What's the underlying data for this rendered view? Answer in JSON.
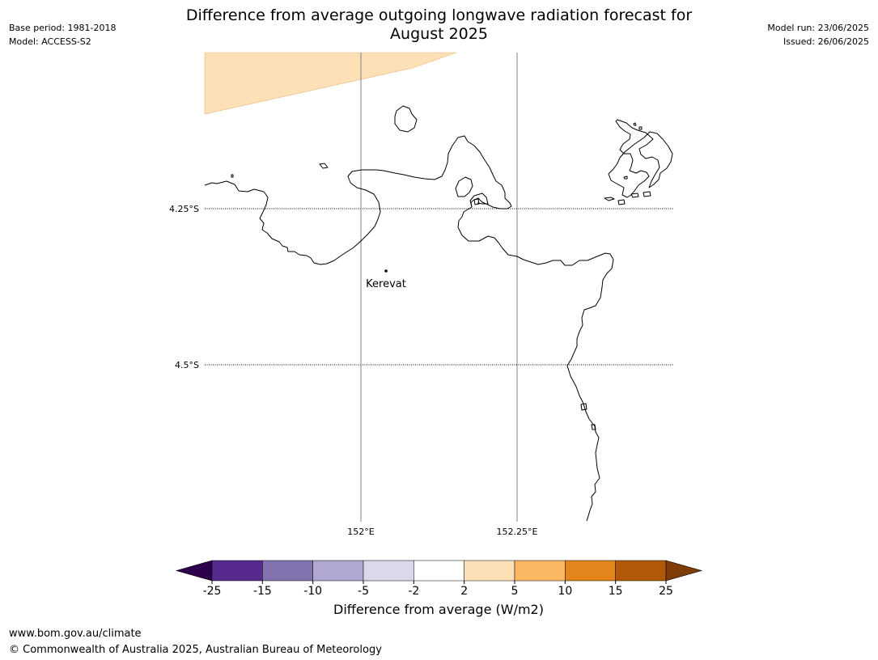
{
  "header": {
    "title_line1": "Difference from average outgoing longwave radiation forecast for",
    "title_line2": "August 2025",
    "base_period": "Base period: 1981-2018",
    "model": "Model: ACCESS-S2",
    "model_run": "Model run: 23/06/2025",
    "issued": "Issued: 26/06/2025"
  },
  "map": {
    "lat_labels": [
      "4.25°S",
      "4.5°S"
    ],
    "lon_labels": [
      "152°E",
      "152.25°E"
    ],
    "place": "Kerevat",
    "land_color": "#ffffff",
    "coast_color": "#000000",
    "shade_color": "#fde0b6"
  },
  "colorbar": {
    "label": "Difference from average (W/m2)",
    "ticks": [
      "-25",
      "-15",
      "-10",
      "-5",
      "-2",
      "2",
      "5",
      "10",
      "15",
      "25"
    ],
    "colors": [
      "#562b8d",
      "#8273b0",
      "#b0a8d1",
      "#d9d9eb",
      "#ffffff",
      "#fde0b6",
      "#fbb862",
      "#e2851b",
      "#b35806"
    ],
    "under_color": "#2d004b",
    "over_color": "#7f3b08"
  },
  "footer": {
    "website": "www.bom.gov.au/climate",
    "copyright": "© Commonwealth of Australia 2025, Australian Bureau of Meteorology"
  }
}
